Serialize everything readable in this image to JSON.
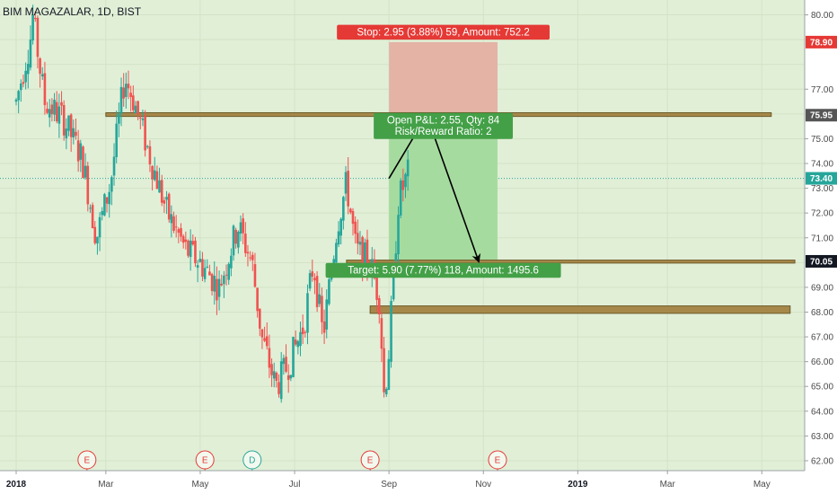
{
  "chart_data": {
    "type": "candlestick",
    "title": "BIM MAGAZALAR, 1D, BIST",
    "x_ticks": [
      {
        "label": "2018",
        "bold": true,
        "t": 0
      },
      {
        "label": "Mar",
        "bold": false,
        "t": 1.9
      },
      {
        "label": "May",
        "bold": false,
        "t": 3.9
      },
      {
        "label": "Jul",
        "bold": false,
        "t": 5.9
      },
      {
        "label": "Sep",
        "bold": false,
        "t": 7.9
      },
      {
        "label": "Nov",
        "bold": false,
        "t": 9.9
      },
      {
        "label": "2019",
        "bold": true,
        "t": 11.9
      },
      {
        "label": "Mar",
        "bold": false,
        "t": 13.8
      },
      {
        "label": "May",
        "bold": false,
        "t": 15.8
      }
    ],
    "ylim": [
      61.6,
      80.6
    ],
    "y_ticks": [
      80,
      78.9,
      77,
      75.95,
      75,
      74,
      73.4,
      73,
      72,
      71,
      70.05,
      69,
      68,
      67,
      66,
      65,
      64,
      63,
      62
    ],
    "price_tags": [
      {
        "value": 78.9,
        "label": "78.90",
        "color": "#e53935"
      },
      {
        "value": 75.95,
        "label": "75.95",
        "color": "#555555"
      },
      {
        "value": 73.4,
        "label": "73.40",
        "color": "#26a69a"
      },
      {
        "value": 70.05,
        "label": "70.05",
        "color": "#131722"
      }
    ],
    "current_price": 73.4,
    "colors": {
      "up": "#26a69a",
      "down": "#ef5350",
      "background": "#e1efd7",
      "stop_zone": "#e4b3a6",
      "target_zone": "#a6dba0",
      "level_band": "#a6884a"
    },
    "trade": {
      "entry": 75.95,
      "stop": 78.9,
      "target": 70.05,
      "t_start": 7.9,
      "t_end": 10.2,
      "stop_label": "Stop: 2.95 (3.88%) 59, Amount: 752.2",
      "pnl_label": "Open P&L: 2.55, Qty: 84",
      "rr_label": "Risk/Reward Ratio: 2",
      "target_label": "Target: 5.90 (7.77%) 118, Amount: 1495.6"
    },
    "levels": [
      {
        "t_start": 1.9,
        "t_end": 16.0,
        "low": 75.9,
        "high": 76.05
      },
      {
        "t_start": 7.0,
        "t_end": 16.5,
        "low": 69.98,
        "high": 70.1
      },
      {
        "t_start": 7.5,
        "t_end": 16.4,
        "low": 67.95,
        "high": 68.25
      }
    ],
    "arrow_path": [
      {
        "t": 7.9,
        "v": 73.4
      },
      {
        "t": 8.7,
        "v": 75.95
      },
      {
        "t": 9.8,
        "v": 70.05
      }
    ],
    "events": [
      {
        "t": 1.5,
        "letter": "E",
        "color": "#e53935"
      },
      {
        "t": 4.0,
        "letter": "E",
        "color": "#e53935"
      },
      {
        "t": 5.0,
        "letter": "D",
        "color": "#26a69a"
      },
      {
        "t": 7.5,
        "letter": "E",
        "color": "#e53935"
      },
      {
        "t": 10.2,
        "letter": "E",
        "color": "#e53935"
      }
    ],
    "price_path": [
      [
        0.0,
        76.5
      ],
      [
        0.3,
        79.0
      ],
      [
        0.35,
        80.0
      ],
      [
        0.6,
        76.5
      ],
      [
        1.0,
        75.8
      ],
      [
        1.4,
        74.2
      ],
      [
        1.7,
        71.0
      ],
      [
        2.0,
        73.2
      ],
      [
        2.3,
        77.5
      ],
      [
        2.5,
        76.5
      ],
      [
        2.8,
        74.5
      ],
      [
        3.2,
        72.0
      ],
      [
        3.6,
        70.5
      ],
      [
        3.9,
        70.0
      ],
      [
        4.3,
        69.0
      ],
      [
        4.7,
        71.5
      ],
      [
        5.0,
        70.0
      ],
      [
        5.2,
        67.0
      ],
      [
        5.5,
        65.0
      ],
      [
        5.8,
        66.0
      ],
      [
        6.1,
        67.5
      ],
      [
        6.3,
        70.0
      ],
      [
        6.5,
        67.0
      ],
      [
        6.8,
        71.5
      ],
      [
        7.0,
        73.2
      ],
      [
        7.2,
        70.5
      ],
      [
        7.5,
        70.0
      ],
      [
        7.7,
        68.5
      ],
      [
        7.8,
        64.5
      ],
      [
        7.9,
        66.5
      ],
      [
        8.1,
        72.5
      ],
      [
        8.3,
        73.6
      ]
    ],
    "candle_count": 165,
    "candle_t_end": 8.3
  }
}
